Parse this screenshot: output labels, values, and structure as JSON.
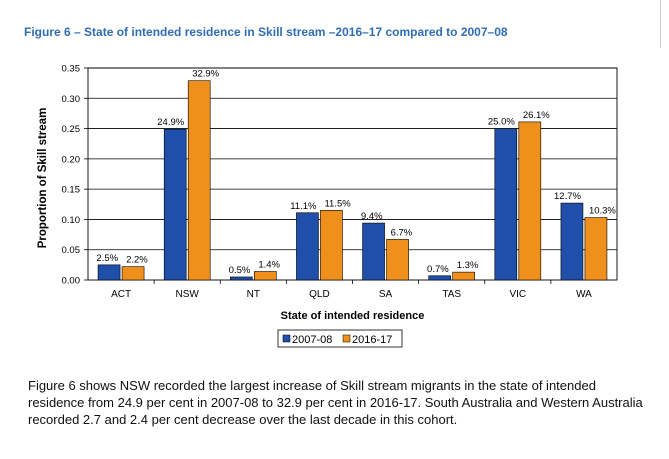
{
  "figure_title": "Figure 6 – State of intended residence in Skill stream –2016–17 compared to 2007–08",
  "caption": "Figure 6 shows NSW recorded the largest increase of Skill stream migrants in the state of intended residence from 24.9 per cent in 2007-08 to 32.9 per cent in 2016-17.  South Australia and Western Australia recorded 2.7 and 2.4 per cent decrease over the last decade in this cohort.",
  "colors": {
    "s2007": "#1f4fa8",
    "s2016": "#f0901c",
    "title": "#2f6db5"
  },
  "chart_data": {
    "type": "bar",
    "title": "",
    "xlabel": "State of intended residence",
    "ylabel": "Proportion of Skill stream",
    "categories": [
      "ACT",
      "NSW",
      "NT",
      "QLD",
      "SA",
      "TAS",
      "VIC",
      "WA"
    ],
    "series": [
      {
        "name": "2007-08",
        "values": [
          0.025,
          0.249,
          0.005,
          0.111,
          0.094,
          0.007,
          0.25,
          0.127
        ],
        "labels": [
          "2.5%",
          "24.9%",
          "0.5%",
          "11.1%",
          "9.4%",
          "0.7%",
          "25.0%",
          "12.7%"
        ]
      },
      {
        "name": "2016-17",
        "values": [
          0.022,
          0.329,
          0.014,
          0.115,
          0.067,
          0.013,
          0.261,
          0.103
        ],
        "labels": [
          "2.2%",
          "32.9%",
          "1.4%",
          "11.5%",
          "6.7%",
          "1.3%",
          "26.1%",
          "10.3%"
        ]
      }
    ],
    "ylim": [
      0,
      0.35
    ],
    "yticks": [
      "0.00",
      "0.05",
      "0.10",
      "0.15",
      "0.20",
      "0.25",
      "0.30",
      "0.35"
    ],
    "grid": true,
    "legend": "bottom"
  }
}
